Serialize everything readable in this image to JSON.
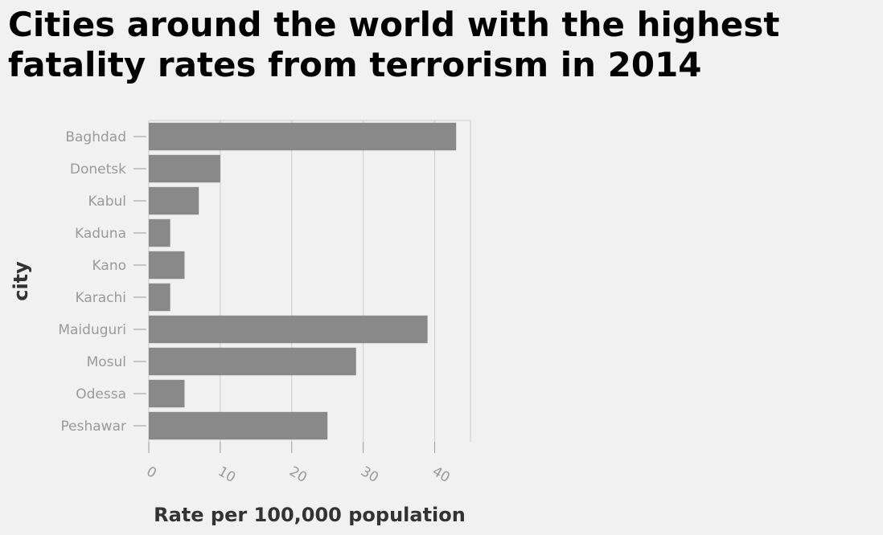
{
  "chart_data": {
    "type": "bar",
    "orientation": "horizontal",
    "title": "Cities around the world with the highest fatality rates from terrorism in 2014",
    "xlabel": "Rate per 100,000 population",
    "ylabel": "city",
    "categories": [
      "Baghdad",
      "Donetsk",
      "Kabul",
      "Kaduna",
      "Kano",
      "Karachi",
      "Maiduguri",
      "Mosul",
      "Odessa",
      "Peshawar"
    ],
    "values": [
      43,
      10,
      7,
      3,
      5,
      3,
      39,
      29,
      5,
      25
    ],
    "xlim": [
      0,
      45
    ],
    "xticks": [
      0,
      10,
      20,
      30,
      40
    ],
    "grid": "vertical",
    "bar_color": "#898989",
    "grid_color": "#cccccc"
  }
}
